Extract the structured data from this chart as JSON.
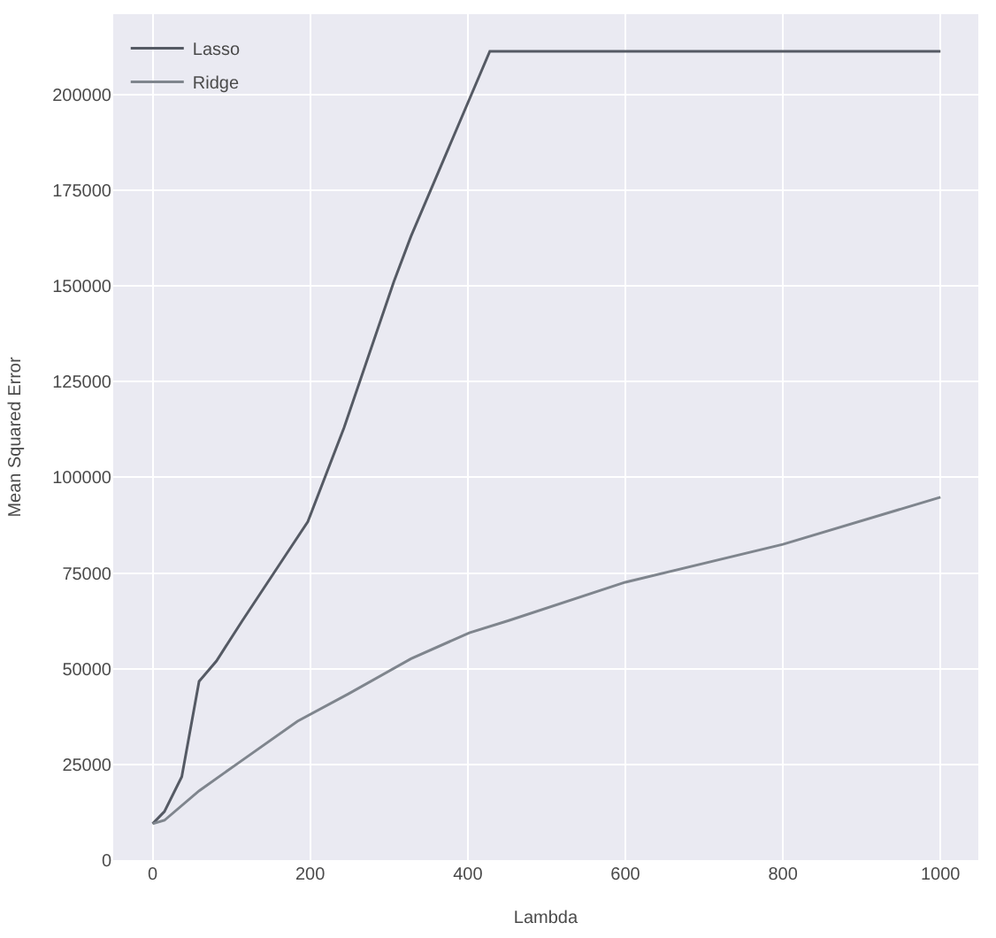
{
  "chart_data": {
    "type": "line",
    "xlabel": "Lambda",
    "ylabel": "Mean Squared Error",
    "xlim": [
      -50,
      1048
    ],
    "ylim": [
      0,
      221000
    ],
    "xticks": [
      0,
      200,
      400,
      600,
      800,
      1000
    ],
    "yticks": [
      0,
      25000,
      50000,
      75000,
      100000,
      125000,
      150000,
      175000,
      200000
    ],
    "grid": true,
    "legend": "top left",
    "marker": "none",
    "line_style": "solid",
    "series": [
      {
        "name": "Lasso",
        "color": "#555a64",
        "x": [
          0,
          15,
          37,
          59,
          81,
          114,
          168,
          197,
          243,
          306,
          328,
          428,
          1000
        ],
        "values": [
          9500,
          12700,
          21800,
          46700,
          52000,
          62600,
          79400,
          88400,
          113000,
          151000,
          163000,
          211300,
          211300
        ]
      },
      {
        "name": "Ridge",
        "color": "#7f858d",
        "x": [
          0,
          15,
          59,
          109,
          184,
          249,
          328,
          402,
          452,
          600,
          800,
          1000
        ],
        "values": [
          9500,
          10400,
          18100,
          25400,
          36300,
          43500,
          52600,
          59400,
          62600,
          72600,
          82500,
          94800
        ]
      }
    ]
  }
}
